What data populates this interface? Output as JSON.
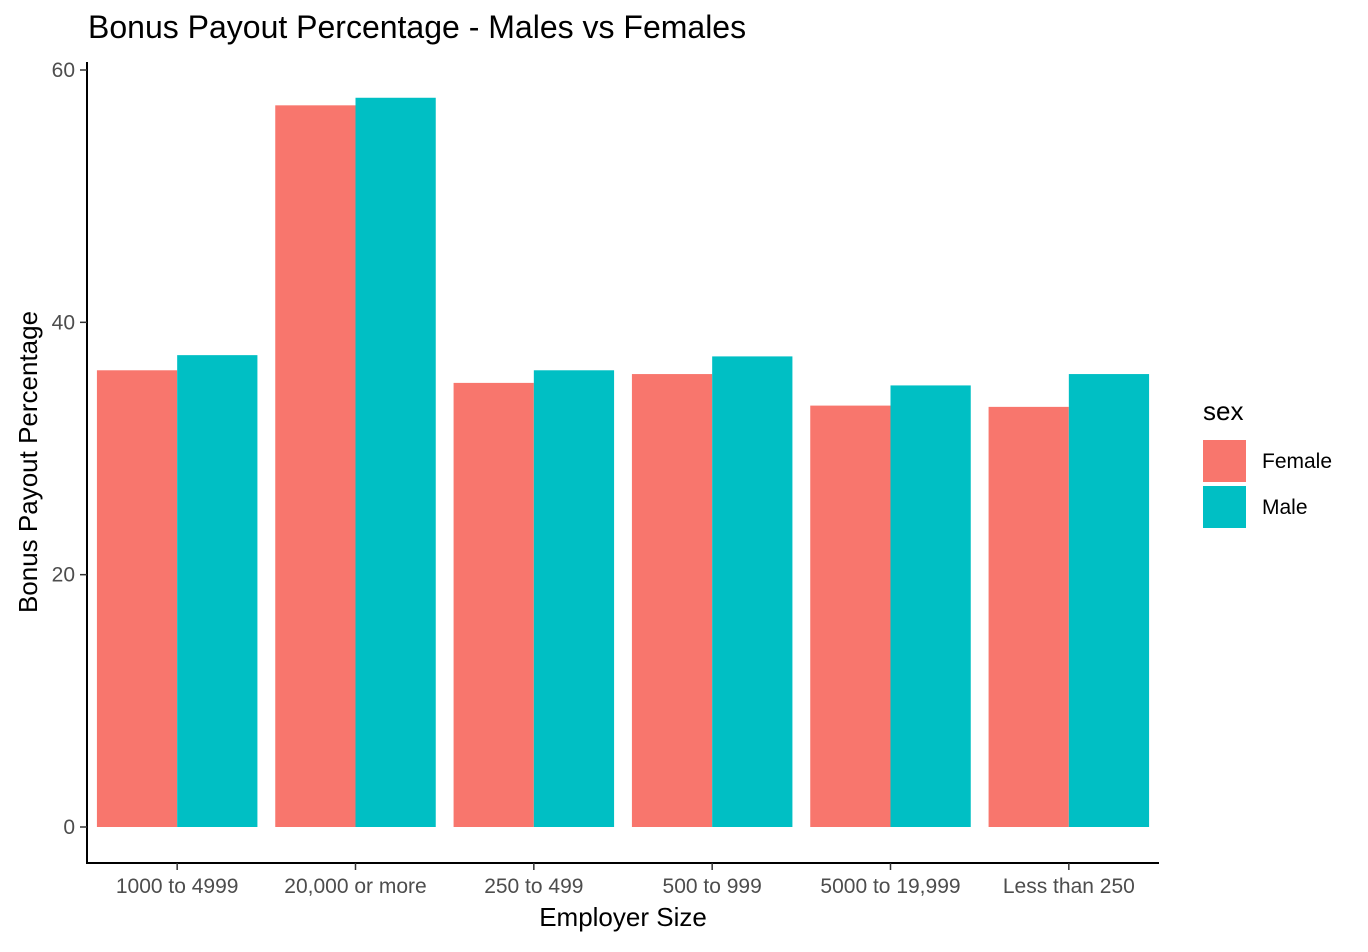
{
  "chart_data": {
    "type": "bar",
    "title": "Bonus Payout Percentage - Males vs Females",
    "xlabel": "Employer Size",
    "ylabel": "Bonus Payout Percentage",
    "categories": [
      "1000 to 4999",
      "20,000 or more",
      "250 to 499",
      "500 to 999",
      "5000 to 19,999",
      "Less than 250"
    ],
    "series": [
      {
        "name": "Female",
        "color": "#F8766D",
        "values": [
          36.2,
          57.2,
          35.2,
          35.9,
          33.4,
          33.3
        ]
      },
      {
        "name": "Male",
        "color": "#00BFC4",
        "values": [
          37.4,
          57.8,
          36.2,
          37.3,
          35.0,
          35.9
        ]
      }
    ],
    "ylim": [
      0,
      60
    ],
    "yticks": [
      0,
      20,
      40,
      60
    ],
    "grid": false,
    "legend": {
      "title": "sex",
      "placement": "right"
    }
  }
}
